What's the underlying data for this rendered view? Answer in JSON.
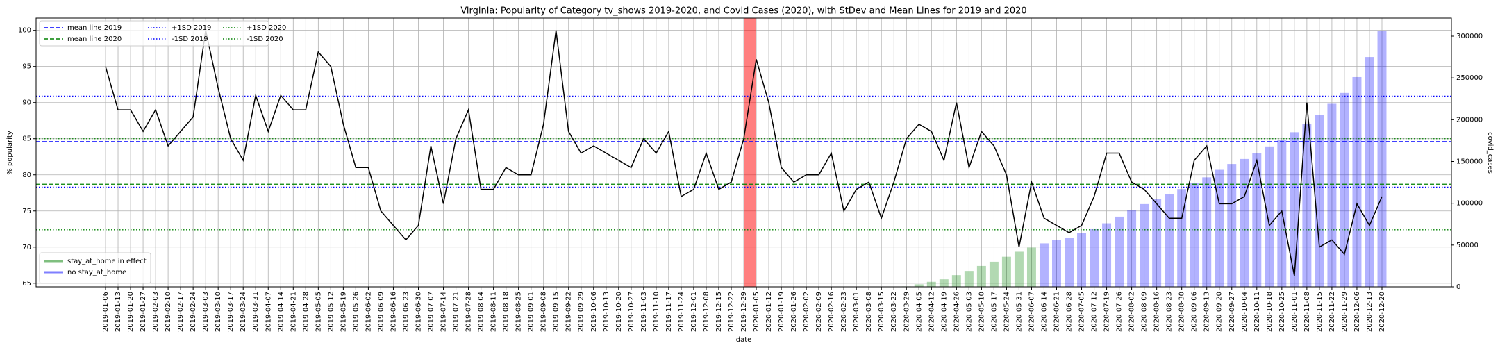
{
  "chart_data": {
    "type": "bar_line",
    "title": "Virginia: Popularity of Category tv_shows 2019-2020, and Covid Cases (2020), with StDev and Mean Lines for 2019 and 2020",
    "xlabel": "date",
    "ylabel": "% popularity",
    "y2label": "covid_cases",
    "categories": [
      "2019-01-06",
      "2019-01-13",
      "2019-01-20",
      "2019-01-27",
      "2019-02-03",
      "2019-02-10",
      "2019-02-17",
      "2019-02-24",
      "2019-03-03",
      "2019-03-10",
      "2019-03-17",
      "2019-03-24",
      "2019-03-31",
      "2019-04-07",
      "2019-04-14",
      "2019-04-21",
      "2019-04-28",
      "2019-05-05",
      "2019-05-12",
      "2019-05-19",
      "2019-05-26",
      "2019-06-02",
      "2019-06-09",
      "2019-06-16",
      "2019-06-23",
      "2019-06-30",
      "2019-07-07",
      "2019-07-14",
      "2019-07-21",
      "2019-07-28",
      "2019-08-04",
      "2019-08-11",
      "2019-08-18",
      "2019-08-25",
      "2019-09-01",
      "2019-09-08",
      "2019-09-15",
      "2019-09-22",
      "2019-09-29",
      "2019-10-06",
      "2019-10-13",
      "2019-10-20",
      "2019-10-27",
      "2019-11-03",
      "2019-11-10",
      "2019-11-17",
      "2019-11-24",
      "2019-12-01",
      "2019-12-08",
      "2019-12-15",
      "2019-12-22",
      "2019-12-29",
      "2020-01-05",
      "2020-01-12",
      "2020-01-19",
      "2020-01-26",
      "2020-02-02",
      "2020-02-09",
      "2020-02-16",
      "2020-02-23",
      "2020-03-01",
      "2020-03-08",
      "2020-03-15",
      "2020-03-22",
      "2020-03-29",
      "2020-04-05",
      "2020-04-12",
      "2020-04-19",
      "2020-04-26",
      "2020-05-03",
      "2020-05-10",
      "2020-05-17",
      "2020-05-24",
      "2020-05-31",
      "2020-06-07",
      "2020-06-14",
      "2020-06-21",
      "2020-06-28",
      "2020-07-05",
      "2020-07-12",
      "2020-07-19",
      "2020-07-26",
      "2020-08-02",
      "2020-08-09",
      "2020-08-16",
      "2020-08-23",
      "2020-08-30",
      "2020-09-06",
      "2020-09-13",
      "2020-09-20",
      "2020-09-27",
      "2020-10-04",
      "2020-10-11",
      "2020-10-18",
      "2020-10-25",
      "2020-11-01",
      "2020-11-08",
      "2020-11-15",
      "2020-11-22",
      "2020-11-29",
      "2020-12-06",
      "2020-12-13",
      "2020-12-20"
    ],
    "line": {
      "color": "#000000",
      "values": [
        95,
        89,
        89,
        86,
        89,
        84,
        86,
        88,
        100,
        92,
        85,
        82,
        91,
        86,
        91,
        89,
        89,
        97,
        95,
        87,
        81,
        81,
        75,
        73,
        71,
        73,
        84,
        76,
        85,
        89,
        78,
        78,
        81,
        80,
        80,
        87,
        100,
        86,
        83,
        84,
        83,
        82,
        81,
        85,
        83,
        86,
        77,
        78,
        83,
        78,
        79,
        85,
        96,
        90,
        81,
        79,
        80,
        80,
        83,
        75,
        78,
        79,
        74,
        79,
        85,
        87,
        86,
        82,
        90,
        81,
        86,
        84,
        80,
        70,
        79,
        74,
        73,
        72,
        73,
        77,
        83,
        83,
        79,
        78,
        76,
        74,
        74,
        82,
        84,
        76,
        76,
        77,
        82,
        73,
        75,
        66,
        90,
        70,
        71,
        69,
        76,
        73,
        77
      ]
    },
    "series": [
      {
        "name": "stay_at_home in effect",
        "color": "green",
        "alpha": 0.3,
        "axis": "y2",
        "values": [
          null,
          null,
          null,
          null,
          null,
          null,
          null,
          null,
          null,
          null,
          null,
          null,
          null,
          null,
          null,
          null,
          null,
          null,
          null,
          null,
          null,
          null,
          null,
          null,
          null,
          null,
          null,
          null,
          null,
          null,
          null,
          null,
          null,
          null,
          null,
          null,
          null,
          null,
          null,
          null,
          null,
          null,
          null,
          null,
          null,
          null,
          null,
          null,
          null,
          null,
          null,
          null,
          null,
          null,
          null,
          null,
          null,
          null,
          null,
          null,
          null,
          null,
          null,
          null,
          500,
          3000,
          6000,
          9000,
          14000,
          19000,
          25000,
          30000,
          36000,
          42000,
          47000,
          null,
          null,
          null,
          null,
          null,
          null,
          null,
          null,
          null,
          null,
          null,
          null,
          null,
          null,
          null,
          null,
          null,
          null,
          null,
          null,
          null,
          null,
          null,
          null,
          null,
          null,
          null,
          null
        ]
      },
      {
        "name": "no stay_at_home",
        "color": "blue",
        "alpha": 0.3,
        "axis": "y2",
        "values": [
          null,
          null,
          null,
          null,
          null,
          null,
          null,
          null,
          null,
          null,
          null,
          null,
          null,
          null,
          null,
          null,
          null,
          null,
          null,
          null,
          null,
          null,
          null,
          null,
          null,
          null,
          null,
          null,
          null,
          null,
          null,
          null,
          null,
          null,
          null,
          null,
          null,
          null,
          null,
          null,
          null,
          null,
          null,
          null,
          null,
          null,
          null,
          null,
          null,
          null,
          null,
          null,
          null,
          null,
          null,
          null,
          null,
          null,
          null,
          null,
          null,
          null,
          null,
          null,
          null,
          null,
          null,
          null,
          null,
          null,
          null,
          null,
          null,
          null,
          null,
          52000,
          56000,
          59000,
          64000,
          69000,
          76000,
          84000,
          92000,
          99000,
          105000,
          111000,
          117000,
          124000,
          131000,
          140000,
          147000,
          153000,
          160000,
          168000,
          176000,
          185000,
          195000,
          206000,
          219000,
          232000,
          251000,
          275000,
          306000
        ]
      }
    ],
    "reference_lines": [
      {
        "name": "mean line 2019",
        "color": "blue",
        "style": "dashed",
        "value": 84.6
      },
      {
        "name": "mean line 2020",
        "color": "green",
        "style": "dashed",
        "value": 78.7
      },
      {
        "name": "+1SD 2019",
        "color": "blue",
        "style": "dotted",
        "value": 90.9
      },
      {
        "name": "-1SD 2019",
        "color": "blue",
        "style": "dotted",
        "value": 78.3
      },
      {
        "name": "+1SD 2020",
        "color": "green",
        "style": "dotted",
        "value": 85.0
      },
      {
        "name": "-1SD 2020",
        "color": "green",
        "style": "dotted",
        "value": 72.4
      }
    ],
    "ylim": [
      64.5,
      101.7
    ],
    "yticks": [
      65,
      70,
      75,
      80,
      85,
      90,
      95,
      100
    ],
    "y2lim": [
      0,
      321600
    ],
    "y2ticks": [
      0,
      50000,
      100000,
      150000,
      200000,
      250000,
      300000
    ],
    "grid": true,
    "reference_legend": "upper left",
    "legend": "lower left"
  }
}
